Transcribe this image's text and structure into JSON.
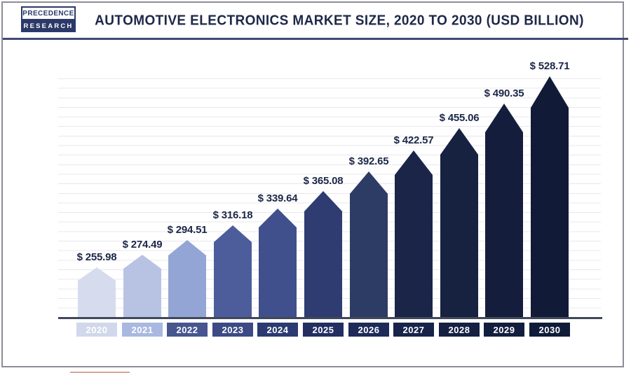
{
  "header": {
    "logo_line1": "PRECEDENCE",
    "logo_line2": "RESEARCH",
    "title": "AUTOMOTIVE ELECTRONICS MARKET SIZE, 2020 TO 2030 (USD BILLION)"
  },
  "chart_data": {
    "type": "bar",
    "title": "Automotive Electronics Market Size, 2020 to 2030 (USD Billion)",
    "unit": "USD Billion",
    "categories": [
      "2020",
      "2021",
      "2022",
      "2023",
      "2024",
      "2025",
      "2026",
      "2027",
      "2028",
      "2029",
      "2030"
    ],
    "values": [
      255.98,
      274.49,
      294.51,
      316.18,
      339.64,
      365.08,
      392.65,
      422.57,
      455.06,
      490.35,
      528.71
    ],
    "value_labels": [
      "$ 255.98",
      "$ 274.49",
      "$ 294.51",
      "$ 316.18",
      "$ 339.64",
      "$ 365.08",
      "$ 392.65",
      "$ 422.57",
      "$ 455.06",
      "$ 490.35",
      "$ 528.71"
    ],
    "xlabel": "",
    "ylabel": "",
    "grid": "horizontal",
    "legend": "none",
    "bar_shape": "pentagon-pointed-top",
    "bar_colors": [
      "#d6dbee",
      "#b8c3e4",
      "#93a5d4",
      "#4d5c9b",
      "#40508c",
      "#2e3c72",
      "#2d3c64",
      "#1b2548",
      "#172140",
      "#141e3c",
      "#111b37"
    ],
    "badge_colors": [
      "#d2d8eb",
      "#a9b8e0",
      "#47568f",
      "#3c4a85",
      "#2b3a71",
      "#232f61",
      "#1e2b58",
      "#18234a",
      "#152043",
      "#131e3e",
      "#101b38"
    ],
    "style": {
      "value_label_color": "#1c2748",
      "badge_text_color": "#ffffff",
      "title_color": "#1e2849",
      "gridline_color": "#e8e8ee",
      "baseline_color": "#41485a",
      "frame_border_color": "#8d8d97",
      "header_rule_color": "#3e4977"
    }
  }
}
